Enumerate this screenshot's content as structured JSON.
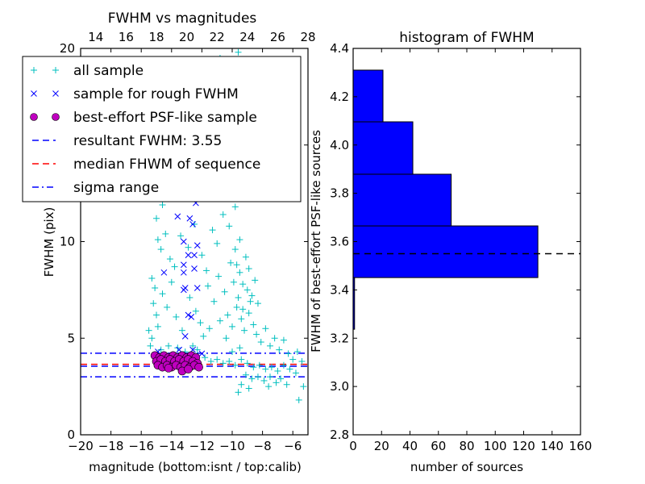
{
  "chart_data": [
    {
      "type": "scatter",
      "title": "FWHM vs magnitudes",
      "xlabel": "magnitude (bottom:isnt / top:calib)",
      "ylabel": "FWHM (pix)",
      "xlim": [
        -20,
        -5
      ],
      "ylim": [
        0,
        20
      ],
      "xticks": [
        "−20",
        "−18",
        "−16",
        "−14",
        "−12",
        "−10",
        "−8",
        "−6"
      ],
      "xtick_values": [
        -20,
        -18,
        -16,
        -14,
        -12,
        -10,
        -8,
        -6
      ],
      "yticks": [
        "0",
        "5",
        "10",
        "15",
        "20"
      ],
      "ytick_values": [
        0,
        5,
        10,
        15,
        20
      ],
      "top_xlim": [
        13.0,
        28.0
      ],
      "top_xticks": [
        "14",
        "16",
        "18",
        "20",
        "22",
        "24",
        "26",
        "28"
      ],
      "top_xtick_values": [
        14,
        16,
        18,
        20,
        22,
        24,
        26,
        28
      ],
      "legend": {
        "placement": "upper-left",
        "entries": [
          {
            "label": "all sample",
            "marker": "plus",
            "color": "#00bfbf"
          },
          {
            "label": "sample for rough FWHM",
            "marker": "x",
            "color": "#0000ff"
          },
          {
            "label": "best-effort PSF-like sample",
            "marker": "circle",
            "color": "#bf00bf"
          },
          {
            "label": "resultant FWHM: 3.55",
            "marker": "dashed",
            "color": "#0000ff"
          },
          {
            "label": "median FHWM of sequence",
            "marker": "dashed",
            "color": "#ff0000"
          },
          {
            "label": "sigma range",
            "marker": "dashdot",
            "color": "#0000ff"
          }
        ]
      },
      "hlines": [
        {
          "name": "resultant-fwhm",
          "y": 3.55,
          "style": "dashed",
          "color": "#0000ff"
        },
        {
          "name": "median-fwhm",
          "y": 3.65,
          "style": "dashed",
          "color": "#ff0000"
        },
        {
          "name": "sigma-upper",
          "y": 4.22,
          "style": "dashdot",
          "color": "#0000ff"
        },
        {
          "name": "sigma-lower",
          "y": 3.0,
          "style": "dashdot",
          "color": "#0000ff"
        }
      ],
      "series": [
        {
          "name": "all sample",
          "color": "#00bfbf",
          "points": [
            [
              -14.8,
              12.6
            ],
            [
              -14.6,
              11.9
            ],
            [
              -14.2,
              12.3
            ],
            [
              -13.9,
              13.2
            ],
            [
              -13.5,
              14.8
            ],
            [
              -13.0,
              16.1
            ],
            [
              -12.7,
              15.5
            ],
            [
              -12.2,
              17.3
            ],
            [
              -11.5,
              18.2
            ],
            [
              -10.8,
              19.5
            ],
            [
              -9.6,
              19.8
            ],
            [
              -9.2,
              19.4
            ],
            [
              -8.8,
              17.9
            ],
            [
              -8.4,
              15.7
            ],
            [
              -9.9,
              16.5
            ],
            [
              -10.5,
              14.2
            ],
            [
              -15.0,
              11.2
            ],
            [
              -14.9,
              10.1
            ],
            [
              -14.7,
              9.6
            ],
            [
              -14.4,
              10.4
            ],
            [
              -14.1,
              9.1
            ],
            [
              -13.8,
              8.7
            ],
            [
              -13.4,
              10.3
            ],
            [
              -12.9,
              9.7
            ],
            [
              -12.5,
              10.9
            ],
            [
              -12.0,
              9.3
            ],
            [
              -11.7,
              8.5
            ],
            [
              -11.3,
              10.6
            ],
            [
              -11.0,
              9.9
            ],
            [
              -10.6,
              11.4
            ],
            [
              -10.2,
              10.8
            ],
            [
              -9.8,
              11.8
            ],
            [
              -15.3,
              8.1
            ],
            [
              -15.1,
              7.6
            ],
            [
              -15.2,
              6.8
            ],
            [
              -15.0,
              6.2
            ],
            [
              -14.9,
              5.6
            ],
            [
              -15.3,
              5.0
            ],
            [
              -14.6,
              7.3
            ],
            [
              -14.3,
              6.6
            ],
            [
              -14.0,
              7.9
            ],
            [
              -13.7,
              6.1
            ],
            [
              -13.3,
              5.4
            ],
            [
              -12.8,
              7.1
            ],
            [
              -12.4,
              6.4
            ],
            [
              -12.1,
              5.8
            ],
            [
              -11.6,
              7.7
            ],
            [
              -11.2,
              6.9
            ],
            [
              -10.9,
              8.2
            ],
            [
              -10.5,
              7.4
            ],
            [
              -10.1,
              8.9
            ],
            [
              -9.8,
              9.6
            ],
            [
              -9.5,
              8.4
            ],
            [
              -9.3,
              7.8
            ],
            [
              -9.1,
              9.2
            ],
            [
              -8.9,
              8.6
            ],
            [
              -8.7,
              7.2
            ],
            [
              -8.5,
              8.0
            ],
            [
              -9.7,
              6.6
            ],
            [
              -9.4,
              6.0
            ],
            [
              -9.2,
              5.4
            ],
            [
              -8.9,
              6.3
            ],
            [
              -8.6,
              5.7
            ],
            [
              -8.3,
              6.8
            ],
            [
              -9.6,
              7.1
            ],
            [
              -9.0,
              7.5
            ],
            [
              -8.8,
              6.9
            ],
            [
              -9.3,
              6.5
            ],
            [
              -8.4,
              5.2
            ],
            [
              -8.1,
              4.8
            ],
            [
              -7.8,
              5.5
            ],
            [
              -7.5,
              4.6
            ],
            [
              -7.2,
              5.0
            ],
            [
              -6.9,
              4.4
            ],
            [
              -6.6,
              4.9
            ],
            [
              -6.3,
              4.2
            ],
            [
              -6.0,
              3.9
            ],
            [
              -5.7,
              4.3
            ],
            [
              -5.4,
              3.8
            ],
            [
              -10.3,
              6.2
            ],
            [
              -11.8,
              4.0
            ],
            [
              -11.4,
              3.8
            ],
            [
              -11.0,
              3.9
            ],
            [
              -10.6,
              3.7
            ],
            [
              -10.2,
              3.8
            ],
            [
              -9.8,
              3.6
            ],
            [
              -9.4,
              3.9
            ],
            [
              -9.0,
              3.7
            ],
            [
              -8.6,
              3.5
            ],
            [
              -8.2,
              3.6
            ],
            [
              -7.8,
              3.4
            ],
            [
              -7.4,
              3.5
            ],
            [
              -7.0,
              3.3
            ],
            [
              -6.6,
              3.6
            ],
            [
              -6.2,
              3.4
            ],
            [
              -5.8,
              3.2
            ],
            [
              -9.1,
              3.1
            ],
            [
              -8.7,
              2.9
            ],
            [
              -8.3,
              3.0
            ],
            [
              -7.9,
              2.8
            ],
            [
              -7.5,
              3.0
            ],
            [
              -7.1,
              2.7
            ],
            [
              -9.4,
              2.6
            ],
            [
              -9.6,
              2.2
            ],
            [
              -8.9,
              2.4
            ],
            [
              -7.6,
              2.5
            ],
            [
              -6.8,
              2.9
            ],
            [
              -6.4,
              2.6
            ],
            [
              -5.6,
              1.8
            ],
            [
              -5.3,
              2.5
            ],
            [
              -10.0,
              4.3
            ],
            [
              -9.5,
              4.5
            ],
            [
              -15.5,
              5.4
            ],
            [
              -15.4,
              4.6
            ],
            [
              -14.7,
              4.4
            ],
            [
              -14.2,
              4.6
            ],
            [
              -13.6,
              4.5
            ],
            [
              -13.1,
              4.3
            ],
            [
              -12.6,
              4.6
            ],
            [
              -12.3,
              4.4
            ],
            [
              -11.9,
              5.1
            ],
            [
              -11.5,
              5.5
            ],
            [
              -10.8,
              5.9
            ],
            [
              -10.4,
              5.0
            ],
            [
              -10.0,
              5.6
            ],
            [
              -9.9,
              7.9
            ],
            [
              -9.7,
              8.8
            ],
            [
              -9.5,
              10.1
            ]
          ]
        },
        {
          "name": "sample for rough FWHM",
          "color": "#0000ff",
          "points": [
            [
              -12.4,
              12.0
            ],
            [
              -13.6,
              11.3
            ],
            [
              -12.8,
              11.2
            ],
            [
              -12.6,
              10.9
            ],
            [
              -13.2,
              10.0
            ],
            [
              -12.3,
              9.8
            ],
            [
              -12.9,
              9.3
            ],
            [
              -12.5,
              9.3
            ],
            [
              -13.2,
              8.8
            ],
            [
              -13.2,
              8.4
            ],
            [
              -12.5,
              8.6
            ],
            [
              -14.5,
              8.4
            ],
            [
              -13.1,
              7.6
            ],
            [
              -13.2,
              7.5
            ],
            [
              -12.3,
              7.6
            ],
            [
              -12.9,
              6.2
            ],
            [
              -12.7,
              6.1
            ],
            [
              -13.1,
              5.1
            ],
            [
              -13.5,
              4.4
            ],
            [
              -12.6,
              4.4
            ],
            [
              -14.9,
              4.3
            ],
            [
              -12.0,
              4.2
            ]
          ]
        },
        {
          "name": "best-effort PSF-like sample",
          "color": "#bf00bf",
          "points": [
            [
              -15.1,
              4.1
            ],
            [
              -14.8,
              4.0
            ],
            [
              -14.5,
              4.1
            ],
            [
              -14.2,
              4.0
            ],
            [
              -13.9,
              4.1
            ],
            [
              -13.6,
              4.0
            ],
            [
              -13.3,
              4.1
            ],
            [
              -13.0,
              4.0
            ],
            [
              -12.7,
              4.1
            ],
            [
              -12.4,
              4.0
            ],
            [
              -15.0,
              3.8
            ],
            [
              -14.7,
              3.9
            ],
            [
              -14.4,
              3.8
            ],
            [
              -14.1,
              3.9
            ],
            [
              -13.8,
              3.8
            ],
            [
              -13.5,
              3.9
            ],
            [
              -13.2,
              3.8
            ],
            [
              -12.9,
              3.9
            ],
            [
              -12.6,
              3.8
            ],
            [
              -12.3,
              3.7
            ],
            [
              -14.9,
              3.6
            ],
            [
              -14.6,
              3.5
            ],
            [
              -14.3,
              3.6
            ],
            [
              -14.0,
              3.5
            ],
            [
              -13.7,
              3.6
            ],
            [
              -13.4,
              3.5
            ],
            [
              -13.1,
              3.6
            ],
            [
              -12.8,
              3.5
            ],
            [
              -12.5,
              3.6
            ],
            [
              -12.2,
              3.5
            ],
            [
              -13.3,
              3.3
            ],
            [
              -14.2,
              3.45
            ],
            [
              -12.9,
              3.4
            ]
          ]
        }
      ]
    },
    {
      "type": "bar",
      "orientation": "horizontal",
      "title": "histogram of FWHM",
      "xlabel": "number of sources",
      "ylabel": "FWHM of best-effort PSF-like sources",
      "xlim": [
        0,
        160
      ],
      "ylim": [
        2.8,
        4.4
      ],
      "xticks": [
        "0",
        "20",
        "40",
        "60",
        "80",
        "100",
        "120",
        "140",
        "160"
      ],
      "xtick_values": [
        0,
        20,
        40,
        60,
        80,
        100,
        120,
        140,
        160
      ],
      "yticks": [
        "2.8",
        "3.0",
        "3.2",
        "3.4",
        "3.6",
        "3.8",
        "4.0",
        "4.2",
        "4.4"
      ],
      "ytick_values": [
        2.8,
        3.0,
        3.2,
        3.4,
        3.6,
        3.8,
        4.0,
        4.2,
        4.4
      ],
      "bins": [
        {
          "from": 3.237,
          "to": 3.451,
          "count": 1
        },
        {
          "from": 3.451,
          "to": 3.665,
          "count": 130
        },
        {
          "from": 3.665,
          "to": 3.879,
          "count": 69
        },
        {
          "from": 3.879,
          "to": 4.096,
          "count": 42
        },
        {
          "from": 4.096,
          "to": 4.31,
          "count": 21
        }
      ],
      "bar_color": "#0000ff",
      "hline": {
        "y": 3.55,
        "style": "dashed",
        "color": "#000000"
      }
    }
  ]
}
